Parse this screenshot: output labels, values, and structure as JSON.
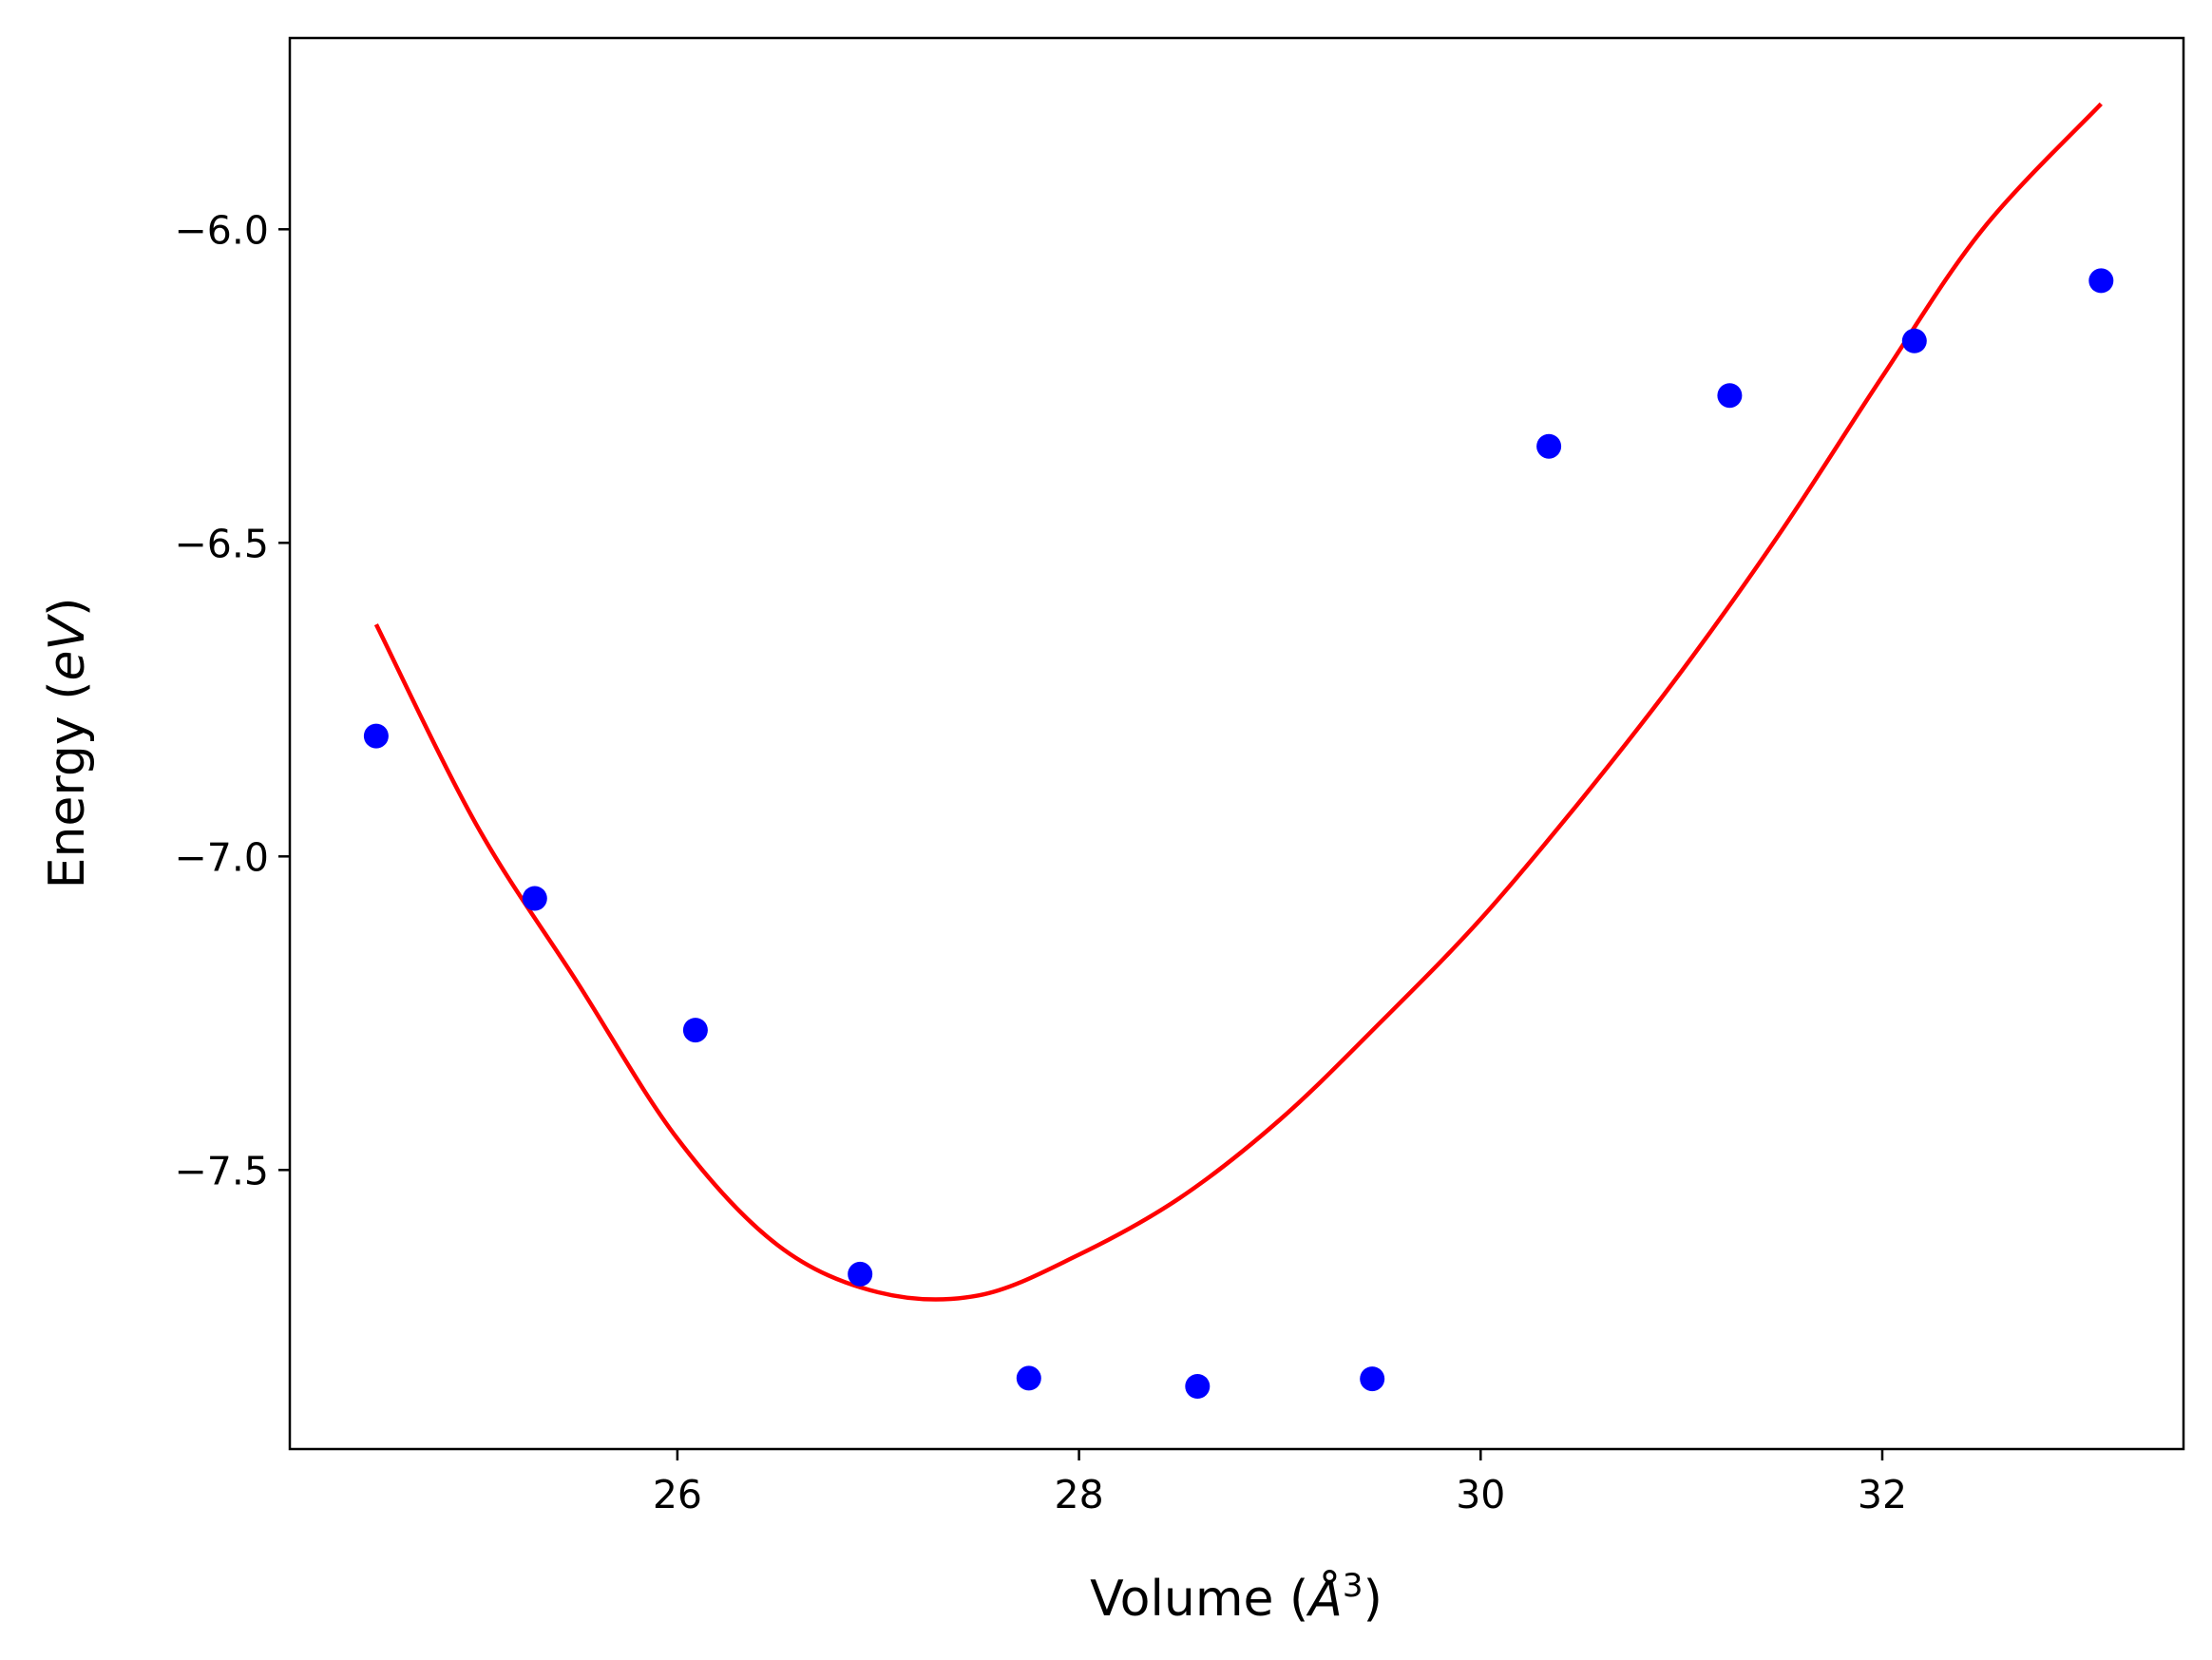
{
  "chart_data": {
    "type": "scatter",
    "title": "",
    "xlabel": {
      "before": "Volume (",
      "symbol": "Å",
      "exponent": "3",
      "after": ")"
    },
    "ylabel": {
      "before": "Energy (",
      "symbol": "eV",
      "after": ")"
    },
    "xlim": [
      24.07,
      33.5
    ],
    "ylim": [
      -7.945,
      -5.695
    ],
    "xticks": [
      26,
      28,
      30,
      32
    ],
    "yticks": [
      -6.0,
      -6.5,
      -7.0,
      -7.5
    ],
    "xtick_labels": [
      "26",
      "28",
      "30",
      "32"
    ],
    "ytick_labels": [
      "−6.0",
      "−6.5",
      "−7.0",
      "−7.5"
    ],
    "grid": false,
    "legend": "none",
    "series": [
      {
        "type": "scatter",
        "color": "#0000ff",
        "x": [
          24.5,
          25.29,
          26.09,
          26.91,
          27.75,
          28.59,
          29.46,
          30.34,
          31.24,
          32.16,
          33.09
        ],
        "y": [
          -6.808,
          -7.067,
          -7.277,
          -7.666,
          -7.832,
          -7.845,
          -7.833,
          -6.346,
          -6.265,
          -6.178,
          -6.082
        ]
      },
      {
        "type": "line",
        "color": "#ff0000",
        "x": [
          24.5,
          25.0,
          25.5,
          26.0,
          26.5,
          27.0,
          27.5,
          28.0,
          28.5,
          29.0,
          29.5,
          30.0,
          30.5,
          31.0,
          31.5,
          32.0,
          32.5,
          33.09
        ],
        "y": [
          -6.63,
          -6.95,
          -7.2,
          -7.45,
          -7.62,
          -7.695,
          -7.7,
          -7.635,
          -7.545,
          -7.42,
          -7.265,
          -7.1,
          -6.91,
          -6.705,
          -6.48,
          -6.235,
          -6.0,
          -5.8
        ]
      }
    ]
  }
}
